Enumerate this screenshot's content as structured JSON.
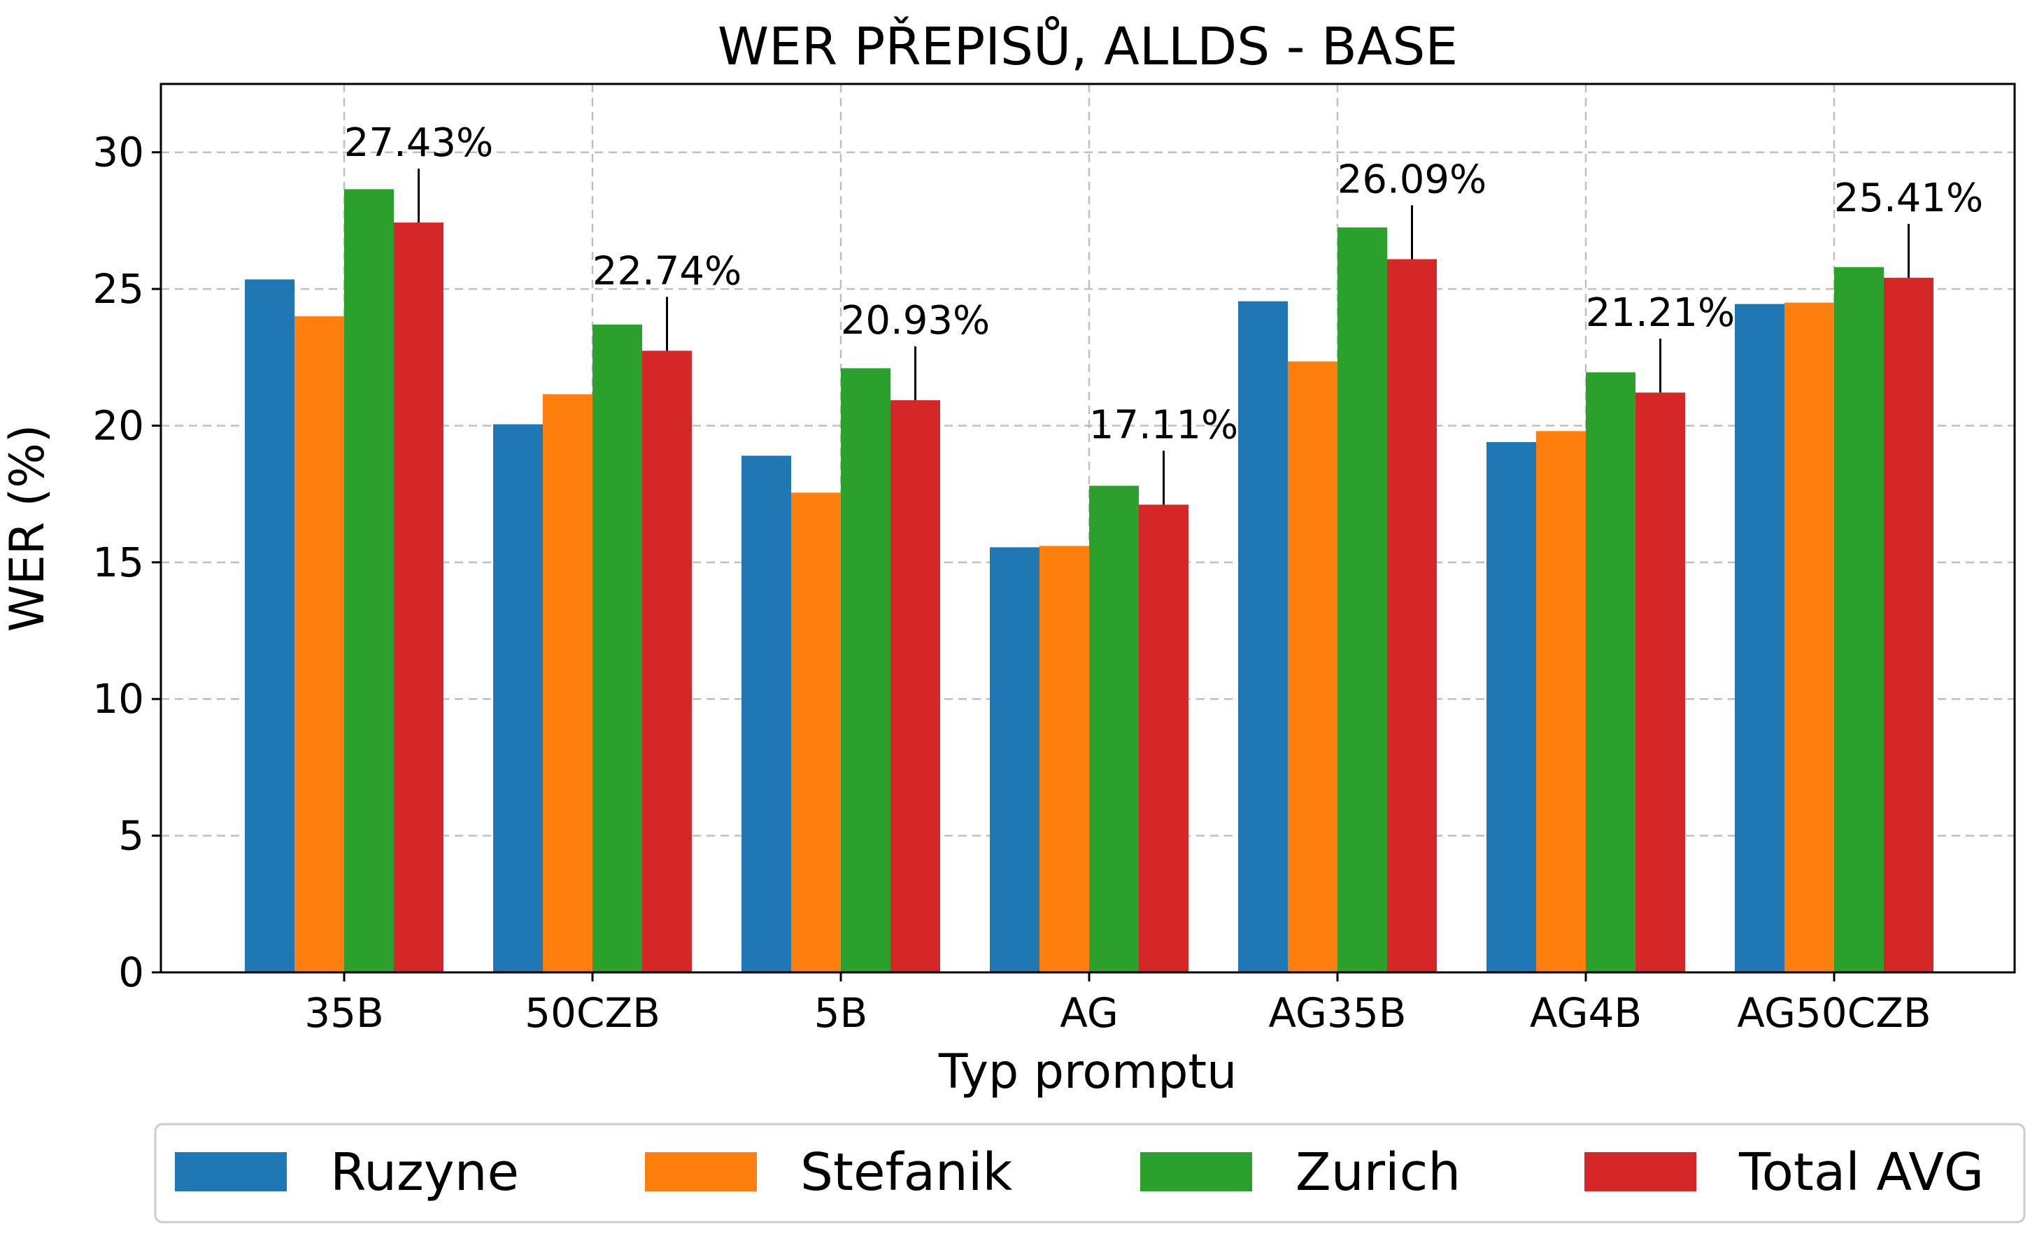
{
  "chart_data": {
    "type": "bar",
    "title": "WER PŘEPISŮ, ALLDS - BASE",
    "xlabel": "Typ promptu",
    "ylabel": "WER (%)",
    "ylim": [
      0,
      32.5
    ],
    "yticks": [
      0,
      5,
      10,
      15,
      20,
      25,
      30
    ],
    "grid": true,
    "legend_position": "bottom",
    "categories": [
      "35B",
      "50CZB",
      "5B",
      "AG",
      "AG35B",
      "AG4B",
      "AG50CZB"
    ],
    "series": [
      {
        "name": "Ruzyne",
        "color": "#1f77b4",
        "values": [
          25.35,
          20.05,
          18.9,
          15.55,
          24.55,
          19.4,
          24.45
        ]
      },
      {
        "name": "Stefanik",
        "color": "#ff7f0e",
        "values": [
          24.0,
          21.15,
          17.55,
          15.6,
          22.35,
          19.8,
          24.5
        ]
      },
      {
        "name": "Zurich",
        "color": "#2ca02c",
        "values": [
          28.65,
          23.7,
          22.1,
          17.8,
          27.25,
          21.95,
          25.8
        ]
      },
      {
        "name": "Total AVG",
        "color": "#d62728",
        "values": [
          27.43,
          22.74,
          20.93,
          17.11,
          26.09,
          21.21,
          25.41
        ]
      }
    ],
    "annotations": [
      "27.43%",
      "22.74%",
      "20.93%",
      "17.11%",
      "26.09%",
      "21.21%",
      "25.41%"
    ]
  }
}
